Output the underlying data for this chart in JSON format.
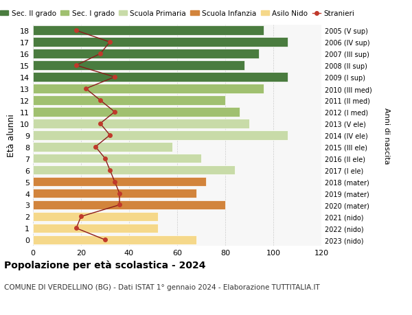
{
  "ages": [
    0,
    1,
    2,
    3,
    4,
    5,
    6,
    7,
    8,
    9,
    10,
    11,
    12,
    13,
    14,
    15,
    16,
    17,
    18
  ],
  "bar_values": [
    68,
    52,
    52,
    80,
    68,
    72,
    84,
    70,
    58,
    106,
    90,
    86,
    80,
    96,
    106,
    88,
    94,
    106,
    96
  ],
  "bar_colors": [
    "#f5d88a",
    "#f5d88a",
    "#f5d88a",
    "#d2843c",
    "#d2843c",
    "#d2843c",
    "#c8dba8",
    "#c8dba8",
    "#c8dba8",
    "#c8dba8",
    "#c8dba8",
    "#a0c070",
    "#a0c070",
    "#a0c070",
    "#4a7c3f",
    "#4a7c3f",
    "#4a7c3f",
    "#4a7c3f",
    "#4a7c3f"
  ],
  "stranieri_values": [
    30,
    18,
    20,
    36,
    36,
    34,
    32,
    30,
    26,
    32,
    28,
    34,
    28,
    22,
    34,
    18,
    28,
    32,
    18
  ],
  "right_labels": [
    "2023 (nido)",
    "2022 (nido)",
    "2021 (nido)",
    "2020 (mater)",
    "2019 (mater)",
    "2018 (mater)",
    "2017 (I ele)",
    "2016 (II ele)",
    "2015 (III ele)",
    "2014 (IV ele)",
    "2013 (V ele)",
    "2012 (I med)",
    "2011 (II med)",
    "2010 (III med)",
    "2009 (I sup)",
    "2008 (II sup)",
    "2007 (III sup)",
    "2006 (IV sup)",
    "2005 (V sup)"
  ],
  "legend_labels": [
    "Sec. II grado",
    "Sec. I grado",
    "Scuola Primaria",
    "Scuola Infanzia",
    "Asilo Nido",
    "Stranieri"
  ],
  "legend_colors": [
    "#4a7c3f",
    "#a0c070",
    "#c8dba8",
    "#d2843c",
    "#f5d88a",
    "#c0392b"
  ],
  "ylabel": "Età alunni",
  "right_ylabel": "Anni di nascita",
  "title": "Popolazione per età scolastica - 2024",
  "subtitle": "COMUNE DI VERDELLINO (BG) - Dati ISTAT 1° gennaio 2024 - Elaborazione TUTTITALIA.IT",
  "xlim": [
    0,
    120
  ],
  "xticks": [
    0,
    20,
    40,
    60,
    80,
    100,
    120
  ],
  "bg_color": "#ffffff",
  "bar_bg_color": "#f7f7f7"
}
